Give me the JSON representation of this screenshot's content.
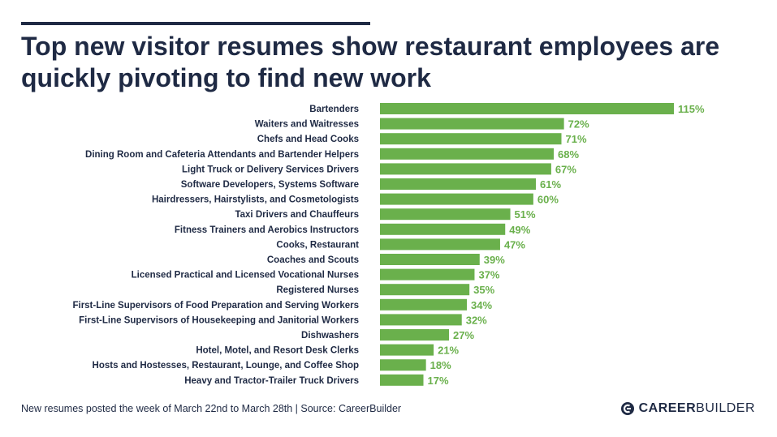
{
  "header": {
    "title": "Top new visitor resumes show restaurant employees are quickly pivoting to find new work"
  },
  "chart_data": {
    "type": "bar",
    "orientation": "horizontal",
    "title": "Top new visitor resumes show restaurant employees are quickly pivoting to find new work",
    "categories": [
      "Bartenders",
      "Waiters and Waitresses",
      "Chefs and Head Cooks",
      "Dining Room and Cafeteria Attendants and Bartender Helpers",
      "Light Truck or Delivery Services Drivers",
      "Software Developers, Systems Software",
      "Hairdressers, Hairstylists, and Cosmetologists",
      "Taxi Drivers and Chauffeurs",
      "Fitness Trainers and Aerobics Instructors",
      "Cooks, Restaurant",
      "Coaches and Scouts",
      "Licensed Practical and Licensed Vocational Nurses",
      "Registered Nurses",
      "First-Line Supervisors of Food Preparation and Serving Workers",
      "First-Line Supervisors of Housekeeping and Janitorial Workers",
      "Dishwashers",
      "Hotel, Motel, and Resort Desk Clerks",
      "Hosts and Hostesses, Restaurant, Lounge, and Coffee Shop",
      "Heavy and Tractor-Trailer Truck Drivers"
    ],
    "values": [
      115,
      72,
      71,
      68,
      67,
      61,
      60,
      51,
      49,
      47,
      39,
      37,
      35,
      34,
      32,
      27,
      21,
      18,
      17
    ],
    "value_labels": [
      "115%",
      "72%",
      "71%",
      "68%",
      "67%",
      "61%",
      "60%",
      "51%",
      "49%",
      "47%",
      "39%",
      "37%",
      "35%",
      "34%",
      "32%",
      "27%",
      "21%",
      "18%",
      "17%"
    ],
    "xlim": [
      0,
      115
    ],
    "grid": false,
    "bar_color": "#6ab04c",
    "label_color": "#1f2a44"
  },
  "footer": {
    "note": "New resumes posted the week of March 22nd to March 28th  |  Source: CareerBuilder"
  },
  "brand": {
    "logo_part1": "CAREER",
    "logo_part2": "BUILDER",
    "logo_icon": "careerbuilder-logo-icon",
    "color": "#1f2a44"
  }
}
